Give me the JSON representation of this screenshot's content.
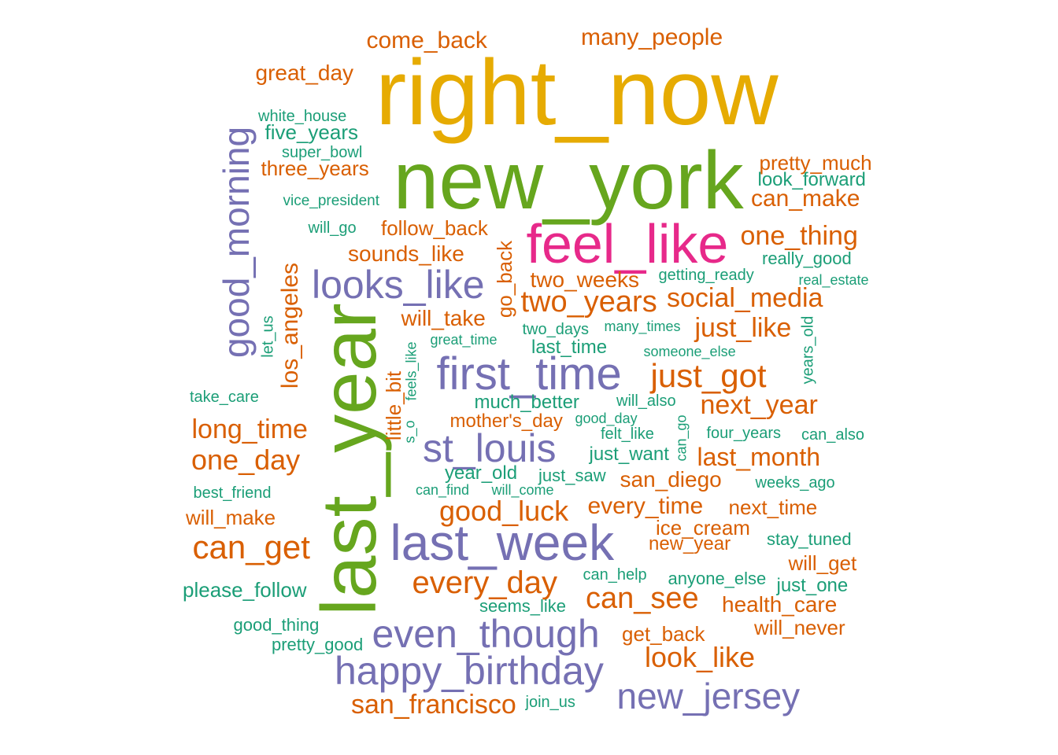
{
  "palette": {
    "teal": "#1b9e77",
    "orange": "#d95f02",
    "purple": "#7570b3",
    "pink": "#e7298a",
    "green": "#66a61e",
    "gold": "#e6ab02"
  },
  "words": [
    {
      "text": "right_now",
      "color": "gold",
      "rank": 6
    },
    {
      "text": "new_york",
      "color": "green",
      "rank": 5
    },
    {
      "text": "last_year",
      "color": "green",
      "rank": 5,
      "rotated": true
    },
    {
      "text": "feel_like",
      "color": "pink",
      "rank": 4
    },
    {
      "text": "last_week",
      "color": "purple",
      "rank": 3
    },
    {
      "text": "first_time",
      "color": "purple",
      "rank": 3
    },
    {
      "text": "looks_like",
      "color": "purple",
      "rank": 3
    },
    {
      "text": "st_louis",
      "color": "purple",
      "rank": 3
    },
    {
      "text": "even_though",
      "color": "purple",
      "rank": 3
    },
    {
      "text": "happy_birthday",
      "color": "purple",
      "rank": 3
    },
    {
      "text": "new_jersey",
      "color": "purple",
      "rank": 3
    },
    {
      "text": "good_morning",
      "color": "purple",
      "rank": 3,
      "rotated": true
    },
    {
      "text": "just_got",
      "color": "orange",
      "rank": 2
    },
    {
      "text": "can_get",
      "color": "orange",
      "rank": 2
    },
    {
      "text": "every_day",
      "color": "orange",
      "rank": 2
    },
    {
      "text": "can_see",
      "color": "orange",
      "rank": 2
    },
    {
      "text": "two_years",
      "color": "orange",
      "rank": 2
    },
    {
      "text": "good_luck",
      "color": "orange",
      "rank": 2
    },
    {
      "text": "one_day",
      "color": "orange",
      "rank": 2
    },
    {
      "text": "long_time",
      "color": "orange",
      "rank": 2
    },
    {
      "text": "social_media",
      "color": "orange",
      "rank": 2
    },
    {
      "text": "just_like",
      "color": "orange",
      "rank": 2
    },
    {
      "text": "next_year",
      "color": "orange",
      "rank": 2
    },
    {
      "text": "look_like",
      "color": "orange",
      "rank": 2
    },
    {
      "text": "san_francisco",
      "color": "orange",
      "rank": 2
    },
    {
      "text": "one_thing",
      "color": "orange",
      "rank": 2
    },
    {
      "text": "last_month",
      "color": "orange",
      "rank": 2
    },
    {
      "text": "every_time",
      "color": "orange",
      "rank": 2
    },
    {
      "text": "los_angeles",
      "color": "orange",
      "rank": 2,
      "rotated": true
    },
    {
      "text": "come_back",
      "color": "orange",
      "rank": 1
    },
    {
      "text": "many_people",
      "color": "orange",
      "rank": 1
    },
    {
      "text": "great_day",
      "color": "orange",
      "rank": 1
    },
    {
      "text": "pretty_much",
      "color": "orange",
      "rank": 1
    },
    {
      "text": "can_make",
      "color": "orange",
      "rank": 1
    },
    {
      "text": "three_years",
      "color": "orange",
      "rank": 1
    },
    {
      "text": "follow_back",
      "color": "orange",
      "rank": 1
    },
    {
      "text": "sounds_like",
      "color": "orange",
      "rank": 1
    },
    {
      "text": "two_weeks",
      "color": "orange",
      "rank": 1
    },
    {
      "text": "will_take",
      "color": "orange",
      "rank": 1
    },
    {
      "text": "mother's_day",
      "color": "orange",
      "rank": 1
    },
    {
      "text": "san_diego",
      "color": "orange",
      "rank": 1
    },
    {
      "text": "next_time",
      "color": "orange",
      "rank": 1
    },
    {
      "text": "will_make",
      "color": "orange",
      "rank": 1
    },
    {
      "text": "ice_cream",
      "color": "orange",
      "rank": 1
    },
    {
      "text": "new_year",
      "color": "orange",
      "rank": 1
    },
    {
      "text": "will_get",
      "color": "orange",
      "rank": 1
    },
    {
      "text": "health_care",
      "color": "orange",
      "rank": 1
    },
    {
      "text": "will_never",
      "color": "orange",
      "rank": 1
    },
    {
      "text": "get_back",
      "color": "orange",
      "rank": 1
    },
    {
      "text": "go_back",
      "color": "orange",
      "rank": 1,
      "rotated": true
    },
    {
      "text": "little_bit",
      "color": "orange",
      "rank": 1,
      "rotated": true
    },
    {
      "text": "white_house",
      "color": "teal",
      "rank": 0
    },
    {
      "text": "five_years",
      "color": "teal",
      "rank": 1
    },
    {
      "text": "super_bowl",
      "color": "teal",
      "rank": 0
    },
    {
      "text": "look_forward",
      "color": "teal",
      "rank": 1
    },
    {
      "text": "vice_president",
      "color": "teal",
      "rank": 0
    },
    {
      "text": "will_go",
      "color": "teal",
      "rank": 0
    },
    {
      "text": "really_good",
      "color": "teal",
      "rank": 0
    },
    {
      "text": "getting_ready",
      "color": "teal",
      "rank": 0
    },
    {
      "text": "real_estate",
      "color": "teal",
      "rank": 0
    },
    {
      "text": "two_days",
      "color": "teal",
      "rank": 0
    },
    {
      "text": "many_times",
      "color": "teal",
      "rank": 0
    },
    {
      "text": "great_time",
      "color": "teal",
      "rank": 0
    },
    {
      "text": "last_time",
      "color": "teal",
      "rank": 1
    },
    {
      "text": "someone_else",
      "color": "teal",
      "rank": 0
    },
    {
      "text": "take_care",
      "color": "teal",
      "rank": 0
    },
    {
      "text": "much_better",
      "color": "teal",
      "rank": 1
    },
    {
      "text": "will_also",
      "color": "teal",
      "rank": 0
    },
    {
      "text": "good_day",
      "color": "teal",
      "rank": 0
    },
    {
      "text": "felt_like",
      "color": "teal",
      "rank": 0
    },
    {
      "text": "four_years",
      "color": "teal",
      "rank": 0
    },
    {
      "text": "can_also",
      "color": "teal",
      "rank": 0
    },
    {
      "text": "just_want",
      "color": "teal",
      "rank": 1
    },
    {
      "text": "year_old",
      "color": "teal",
      "rank": 1
    },
    {
      "text": "just_saw",
      "color": "teal",
      "rank": 0
    },
    {
      "text": "best_friend",
      "color": "teal",
      "rank": 0
    },
    {
      "text": "can_find",
      "color": "teal",
      "rank": 0
    },
    {
      "text": "will_come",
      "color": "teal",
      "rank": 0
    },
    {
      "text": "weeks_ago",
      "color": "teal",
      "rank": 0
    },
    {
      "text": "stay_tuned",
      "color": "teal",
      "rank": 0
    },
    {
      "text": "can_help",
      "color": "teal",
      "rank": 0
    },
    {
      "text": "anyone_else",
      "color": "teal",
      "rank": 0
    },
    {
      "text": "just_one",
      "color": "teal",
      "rank": 0
    },
    {
      "text": "please_follow",
      "color": "teal",
      "rank": 1
    },
    {
      "text": "seems_like",
      "color": "teal",
      "rank": 0
    },
    {
      "text": "good_thing",
      "color": "teal",
      "rank": 0
    },
    {
      "text": "pretty_good",
      "color": "teal",
      "rank": 0
    },
    {
      "text": "join_us",
      "color": "teal",
      "rank": 0
    },
    {
      "text": "let_us",
      "color": "teal",
      "rank": 0,
      "rotated": true
    },
    {
      "text": "years_old",
      "color": "teal",
      "rank": 0,
      "rotated": true
    },
    {
      "text": "feels_like",
      "color": "teal",
      "rank": 0,
      "rotated": true
    },
    {
      "text": "s_o",
      "color": "teal",
      "rank": 0,
      "rotated": true
    },
    {
      "text": "can_go",
      "color": "teal",
      "rank": 0,
      "rotated": true
    }
  ]
}
